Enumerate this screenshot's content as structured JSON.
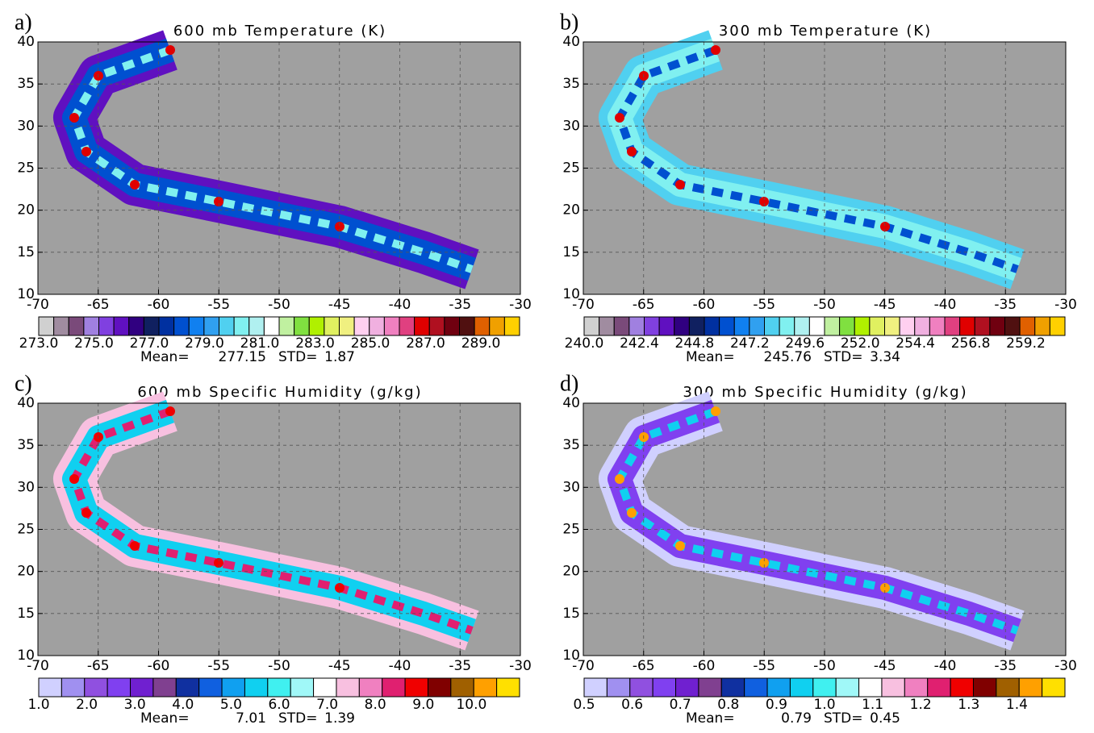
{
  "chart_data": [
    {
      "type": "map",
      "label": "a)",
      "title": "600 mb Temperature (K)",
      "xlim": [
        -70,
        -30
      ],
      "xticks": [
        -70,
        -65,
        -60,
        -55,
        -50,
        -45,
        -40,
        -35,
        -30
      ],
      "ylim": [
        10,
        40
      ],
      "yticks": [
        10,
        15,
        20,
        25,
        30,
        35,
        40
      ],
      "grid": true,
      "colorbar": {
        "lim": [
          273,
          290.4
        ],
        "colors": [
          "#d0d0d0",
          "#a08ca0",
          "#7a4a7a",
          "#a080e0",
          "#8040e0",
          "#6010c0",
          "#300080",
          "#102060",
          "#0030a0",
          "#0050d0",
          "#1080f0",
          "#30a0f0",
          "#50d0f0",
          "#80f0f0",
          "#b0f0f0",
          "#ffffff",
          "#c0f0a0",
          "#80e040",
          "#b0f000",
          "#e0f060",
          "#f0f080",
          "#ffd0f0",
          "#f0b0e0",
          "#f080c0",
          "#e04080",
          "#e00000",
          "#b01020",
          "#700010",
          "#501010",
          "#e06000",
          "#f0a000",
          "#ffd000"
        ],
        "ticks": [
          {
            "value": 273,
            "label": "273.0"
          },
          {
            "value": 275,
            "label": "275.0"
          },
          {
            "value": 277,
            "label": "277.0"
          },
          {
            "value": 279,
            "label": "279.0"
          },
          {
            "value": 281,
            "label": "281.0"
          },
          {
            "value": 283,
            "label": "283.0"
          },
          {
            "value": 285,
            "label": "285.0"
          },
          {
            "value": 287,
            "label": "287.0"
          },
          {
            "value": 289,
            "label": "289.0"
          }
        ]
      },
      "mean_label": "Mean=",
      "mean": 277.15,
      "std_label": "STD=",
      "std": 1.87
    },
    {
      "type": "map",
      "label": "b)",
      "title": "300 mb Temperature (K)",
      "xlim": [
        -70,
        -30
      ],
      "xticks": [
        -70,
        -65,
        -60,
        -55,
        -50,
        -45,
        -40,
        -35,
        -30
      ],
      "ylim": [
        10,
        40
      ],
      "yticks": [
        10,
        15,
        20,
        25,
        30,
        35,
        40
      ],
      "grid": true,
      "colorbar": {
        "lim": [
          240,
          260.9
        ],
        "colors": [
          "#d0d0d0",
          "#a08ca0",
          "#7a4a7a",
          "#a080e0",
          "#8040e0",
          "#6010c0",
          "#300080",
          "#102060",
          "#0030a0",
          "#0050d0",
          "#1080f0",
          "#30a0f0",
          "#50d0f0",
          "#80f0f0",
          "#b0f0f0",
          "#ffffff",
          "#c0f0a0",
          "#80e040",
          "#b0f000",
          "#e0f060",
          "#f0f080",
          "#ffd0f0",
          "#f0b0e0",
          "#f080c0",
          "#e04080",
          "#e00000",
          "#b01020",
          "#700010",
          "#501010",
          "#e06000",
          "#f0a000",
          "#ffd000"
        ],
        "ticks": [
          {
            "value": 240,
            "label": "240.0"
          },
          {
            "value": 242.4,
            "label": "242.4"
          },
          {
            "value": 244.8,
            "label": "244.8"
          },
          {
            "value": 247.2,
            "label": "247.2"
          },
          {
            "value": 249.6,
            "label": "249.6"
          },
          {
            "value": 252,
            "label": "252.0"
          },
          {
            "value": 254.4,
            "label": "254.4"
          },
          {
            "value": 256.8,
            "label": "256.8"
          },
          {
            "value": 259.2,
            "label": "259.2"
          }
        ]
      },
      "mean_label": "Mean=",
      "mean": 245.76,
      "std_label": "STD=",
      "std": 3.34
    },
    {
      "type": "map",
      "label": "c)",
      "title": "600 mb Specific Humidity (g/kg)",
      "xlim": [
        -70,
        -30
      ],
      "xticks": [
        -70,
        -65,
        -60,
        -55,
        -50,
        -45,
        -40,
        -35,
        -30
      ],
      "ylim": [
        10,
        40
      ],
      "yticks": [
        10,
        15,
        20,
        25,
        30,
        35,
        40
      ],
      "grid": true,
      "colorbar": {
        "lim": [
          1,
          11
        ],
        "colors": [
          "#d0d0ff",
          "#a090f0",
          "#9050e0",
          "#8040f0",
          "#7020d0",
          "#804090",
          "#1030a0",
          "#1060e0",
          "#10a0f0",
          "#10d0f0",
          "#40f0f0",
          "#a0f8f8",
          "#ffffff",
          "#f8c0e0",
          "#f080c0",
          "#e02070",
          "#f00000",
          "#800000",
          "#a06000",
          "#ffa000",
          "#ffe000"
        ],
        "ticks": [
          {
            "value": 1,
            "label": "1.0"
          },
          {
            "value": 2,
            "label": "2.0"
          },
          {
            "value": 3,
            "label": "3.0"
          },
          {
            "value": 4,
            "label": "4.0"
          },
          {
            "value": 5,
            "label": "5.0"
          },
          {
            "value": 6,
            "label": "6.0"
          },
          {
            "value": 7,
            "label": "7.0"
          },
          {
            "value": 8,
            "label": "8.0"
          },
          {
            "value": 9,
            "label": "9.0"
          },
          {
            "value": 10,
            "label": "10.0"
          }
        ]
      },
      "mean_label": "Mean=",
      "mean": 7.01,
      "std_label": "STD=",
      "std": 1.39
    },
    {
      "type": "map",
      "label": "d)",
      "title": "300 mb Specific Humidity (g/kg)",
      "xlim": [
        -70,
        -30
      ],
      "xticks": [
        -70,
        -65,
        -60,
        -55,
        -50,
        -45,
        -40,
        -35,
        -30
      ],
      "ylim": [
        10,
        40
      ],
      "yticks": [
        10,
        15,
        20,
        25,
        30,
        35,
        40
      ],
      "grid": true,
      "colorbar": {
        "lim": [
          0.5,
          1.5
        ],
        "colors": [
          "#d0d0ff",
          "#a090f0",
          "#9050e0",
          "#8040f0",
          "#7020d0",
          "#804090",
          "#1030a0",
          "#1060e0",
          "#10a0f0",
          "#10d0f0",
          "#40f0f0",
          "#a0f8f8",
          "#ffffff",
          "#f8c0e0",
          "#f080c0",
          "#e02070",
          "#f00000",
          "#800000",
          "#a06000",
          "#ffa000",
          "#ffe000"
        ],
        "ticks": [
          0.5,
          0.6,
          0.7,
          0.8,
          0.9,
          {
            "value": 1,
            "label": "1.0"
          },
          1.1,
          1.2,
          1.3,
          1.4
        ]
      },
      "mean_label": "Mean=",
      "mean": 0.79,
      "std_label": "STD=",
      "std": 0.45
    }
  ]
}
